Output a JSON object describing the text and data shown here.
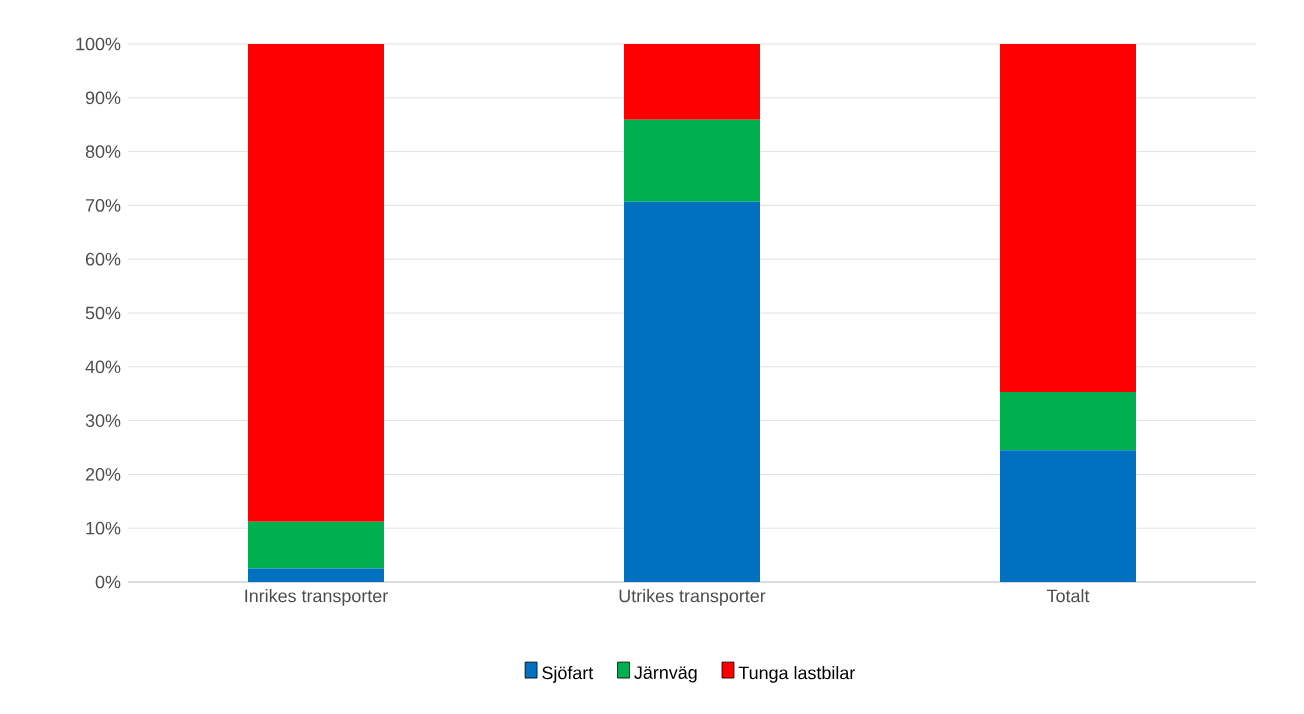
{
  "chart_data": {
    "type": "bar",
    "stacked": true,
    "categories": [
      "Inrikes transporter",
      "Utrikes transporter",
      "Totalt"
    ],
    "series": [
      {
        "name": "Sjöfart",
        "color": "#0070c0",
        "values": [
          2.5,
          70.7,
          24.5
        ]
      },
      {
        "name": "Järnväg",
        "color": "#00b050",
        "values": [
          8.7,
          15.2,
          10.8
        ]
      },
      {
        "name": "Tunga lastbilar",
        "color": "#ff0000",
        "values": [
          88.8,
          14.1,
          64.7
        ]
      }
    ],
    "ylim": [
      0,
      100
    ],
    "yticks": [
      {
        "value": 0,
        "label": "0%"
      },
      {
        "value": 10,
        "label": "10%"
      },
      {
        "value": 20,
        "label": "20%"
      },
      {
        "value": 30,
        "label": "30%"
      },
      {
        "value": 40,
        "label": "40%"
      },
      {
        "value": 50,
        "label": "50%"
      },
      {
        "value": 60,
        "label": "60%"
      },
      {
        "value": 70,
        "label": "70%"
      },
      {
        "value": 80,
        "label": "80%"
      },
      {
        "value": 90,
        "label": "90%"
      },
      {
        "value": 100,
        "label": "100%"
      }
    ],
    "grid": "y",
    "legend": "bottom"
  }
}
